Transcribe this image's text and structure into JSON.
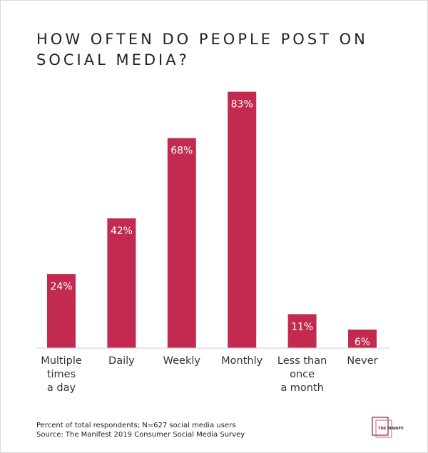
{
  "chart_data": {
    "type": "bar",
    "title": "HOW OFTEN DO PEOPLE POST ON SOCIAL MEDIA?",
    "categories": [
      "Multiple times a day",
      "Daily",
      "Weekly",
      "Monthly",
      "Less than once a month",
      "Never"
    ],
    "category_lines": [
      [
        "Multiple",
        "times",
        "a day"
      ],
      [
        "Daily"
      ],
      [
        "Weekly"
      ],
      [
        "Monthly"
      ],
      [
        "Less than",
        "once",
        "a month"
      ],
      [
        "Never"
      ]
    ],
    "values": [
      24,
      42,
      68,
      83,
      11,
      6
    ],
    "data_labels": [
      "24%",
      "42%",
      "68%",
      "83%",
      "11%",
      "6%"
    ],
    "unit": "%",
    "ylim": [
      0,
      100
    ],
    "grid": false,
    "bar_color": "#c22a4f",
    "xlabel": "",
    "ylabel": ""
  },
  "notes": {
    "line1": "Percent of total respondents; N=627 social media users",
    "line2": "Source: The Manifest 2019 Consumer Social Media Survey"
  },
  "logo": {
    "text": "THE MANIFEST"
  }
}
